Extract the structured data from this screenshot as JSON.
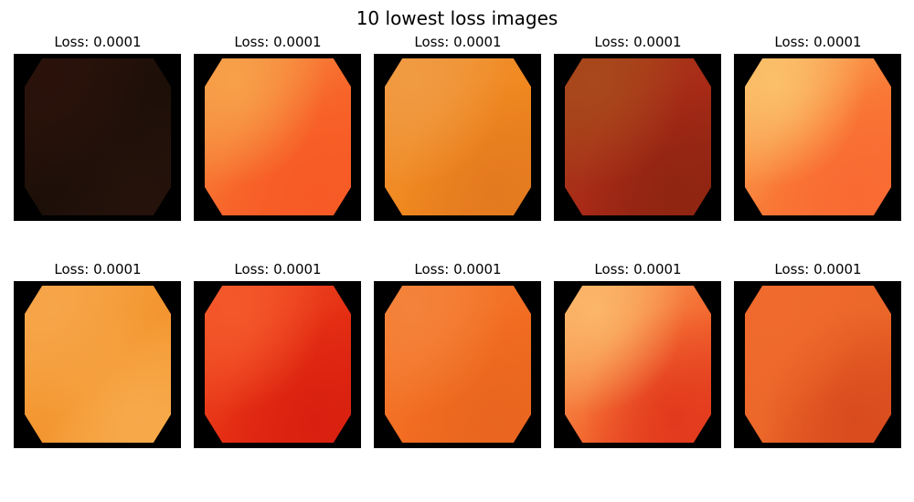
{
  "figure": {
    "title": "10 lowest loss images"
  },
  "panels": [
    {
      "label": "Loss: 0.0001",
      "c1": "#2a120b",
      "c2": "#1c0f08",
      "c3": "#24120b"
    },
    {
      "label": "Loss: 0.0001",
      "c1": "#f7a04a",
      "c2": "#f7662a",
      "c3": "#f75a25"
    },
    {
      "label": "Loss: 0.0001",
      "c1": "#f09a42",
      "c2": "#f0881f",
      "c3": "#e47a1f"
    },
    {
      "label": "Loss: 0.0001",
      "c1": "#a8481c",
      "c2": "#a82a17",
      "c3": "#8f2512"
    },
    {
      "label": "Loss: 0.0001",
      "c1": "#fbc06a",
      "c2": "#f97a36",
      "c3": "#f96a32"
    },
    {
      "label": "Loss: 0.0001",
      "c1": "#f6a548",
      "c2": "#f3952f",
      "c3": "#f7a94a"
    },
    {
      "label": "Loss: 0.0001",
      "c1": "#f4582a",
      "c2": "#e52f14",
      "c3": "#d92010"
    },
    {
      "label": "Loss: 0.0001",
      "c1": "#f4823a",
      "c2": "#f26d21",
      "c3": "#e96620"
    },
    {
      "label": "Loss: 0.0001",
      "c1": "#fbb669",
      "c2": "#f36a31",
      "c3": "#e2391d"
    },
    {
      "label": "Loss: 0.0001",
      "c1": "#ef6a2c",
      "c2": "#eb6729",
      "c3": "#d94b1e"
    }
  ]
}
